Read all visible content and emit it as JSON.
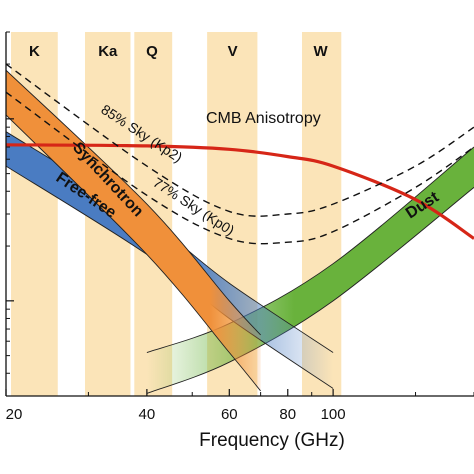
{
  "chart_data": {
    "type": "area",
    "title": "",
    "xlabel": "Frequency (GHz)",
    "ylabel": "",
    "x_scale": "log",
    "xlim": [
      20,
      200
    ],
    "xticks": [
      {
        "value": 20,
        "label": "20"
      },
      {
        "value": 40,
        "label": "40"
      },
      {
        "value": 60,
        "label": "60"
      },
      {
        "value": 80,
        "label": "80"
      },
      {
        "value": 100,
        "label": "100"
      }
    ],
    "y_scale": "log",
    "ylim": [
      3,
      300
    ],
    "bands": [
      {
        "name": "K",
        "center": 23,
        "range": [
          20.5,
          25.8
        ]
      },
      {
        "name": "Ka",
        "center": 33,
        "range": [
          29.5,
          36.9
        ]
      },
      {
        "name": "Q",
        "center": 41,
        "range": [
          37.6,
          45.3
        ]
      },
      {
        "name": "V",
        "center": 61,
        "range": [
          53.8,
          68.9
        ]
      },
      {
        "name": "W",
        "center": 94,
        "range": [
          85.8,
          104.1
        ]
      }
    ],
    "series": [
      {
        "name": "CMB Anisotropy",
        "kind": "line",
        "color": "#d62617",
        "x": [
          20,
          40,
          60,
          80,
          100,
          150,
          200
        ],
        "y": [
          72,
          71,
          68,
          62,
          55,
          36,
          22
        ]
      },
      {
        "name": "85% Sky (Kp2)",
        "kind": "dashed",
        "color": "#111111",
        "x": [
          20,
          40,
          60,
          80,
          100,
          150,
          200
        ],
        "y": [
          200,
          55,
          31,
          30,
          34,
          55,
          90
        ]
      },
      {
        "name": "77% Sky (Kp0)",
        "kind": "dashed",
        "color": "#111111",
        "x": [
          20,
          40,
          60,
          80,
          100,
          150,
          200
        ],
        "y": [
          140,
          38,
          22,
          21,
          24,
          42,
          70
        ]
      },
      {
        "name": "Synchrotron",
        "kind": "band",
        "color": "#f0903a",
        "x": [
          20,
          40,
          60,
          70
        ],
        "lower": [
          105,
          18,
          5.2,
          3.2
        ],
        "upper": [
          185,
          34,
          10,
          6.5
        ]
      },
      {
        "name": "Free-free",
        "kind": "band",
        "color": "#4a7cc2",
        "x": [
          20,
          40,
          60,
          100
        ],
        "lower": [
          55,
          18,
          8,
          3.3
        ],
        "upper": [
          85,
          28,
          12.5,
          5.2
        ]
      },
      {
        "name": "Dust",
        "kind": "band",
        "color": "#69b23c",
        "x": [
          40,
          60,
          100,
          200
        ],
        "lower": [
          3.1,
          4.6,
          10,
          42
        ],
        "upper": [
          5.2,
          7.5,
          16,
          70
        ]
      }
    ],
    "labels": {
      "cmb": "CMB Anisotropy",
      "kp2": "85% Sky (Kp2)",
      "kp0": "77% Sky (Kp0)",
      "synchrotron": "Synchrotron",
      "freefree": "Free-free",
      "dust": "Dust"
    },
    "colors": {
      "band_fill": "#fbe4b8",
      "synchrotron": "#f0903a",
      "freefree": "#4a7cc2",
      "dust": "#69b23c",
      "cmb": "#d62617"
    }
  }
}
